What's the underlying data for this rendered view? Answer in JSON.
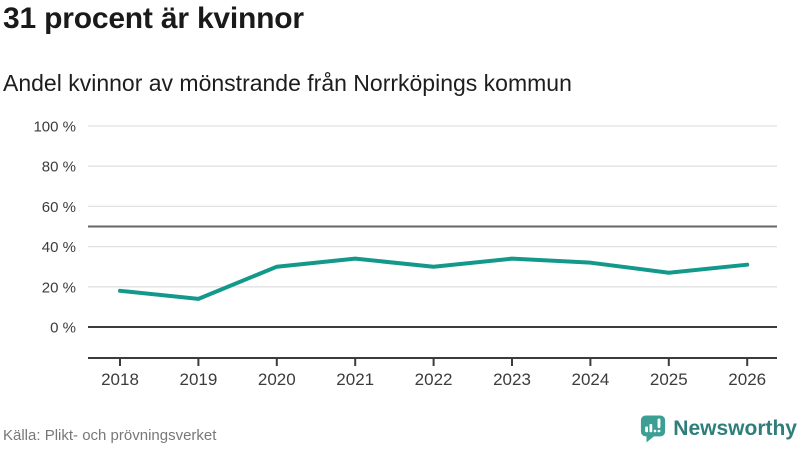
{
  "header": {
    "title": "31 procent är kvinnor",
    "subtitle": "Andel kvinnor av mönstrande från Norrköpings kommun"
  },
  "footer": {
    "source": "Källa: Plikt- och prövningsverket",
    "logo_text": "Newsworthy"
  },
  "icons": {
    "logo_icon": "newsworthy-bar-chart-speech-bubble-icon",
    "logo_icon_color": "#3ba093",
    "logo_text_color": "#2e7f7b"
  },
  "chart_data": {
    "type": "line",
    "title": "31 procent är kvinnor",
    "subtitle": "Andel kvinnor av mönstrande från Norrköpings kommun",
    "categories": [
      "2018",
      "2019",
      "2020",
      "2021",
      "2022",
      "2023",
      "2024",
      "2025",
      "2026"
    ],
    "series": [
      {
        "name": "Andel kvinnor av mönstrande",
        "values": [
          18,
          14,
          30,
          34,
          30,
          34,
          32,
          27,
          31
        ]
      }
    ],
    "unit": "%",
    "ylim": [
      0,
      100
    ],
    "yticks": [
      0,
      20,
      40,
      60,
      80,
      100
    ],
    "ytick_suffix": " %",
    "reference_line_y": 50,
    "grid": true,
    "legend": "none",
    "colors": {
      "line": "#13998b",
      "grid": "#e2e2e2",
      "reference": "#666666",
      "axis": "#3c3c3c",
      "tick_label": "#3c3c3c"
    }
  }
}
